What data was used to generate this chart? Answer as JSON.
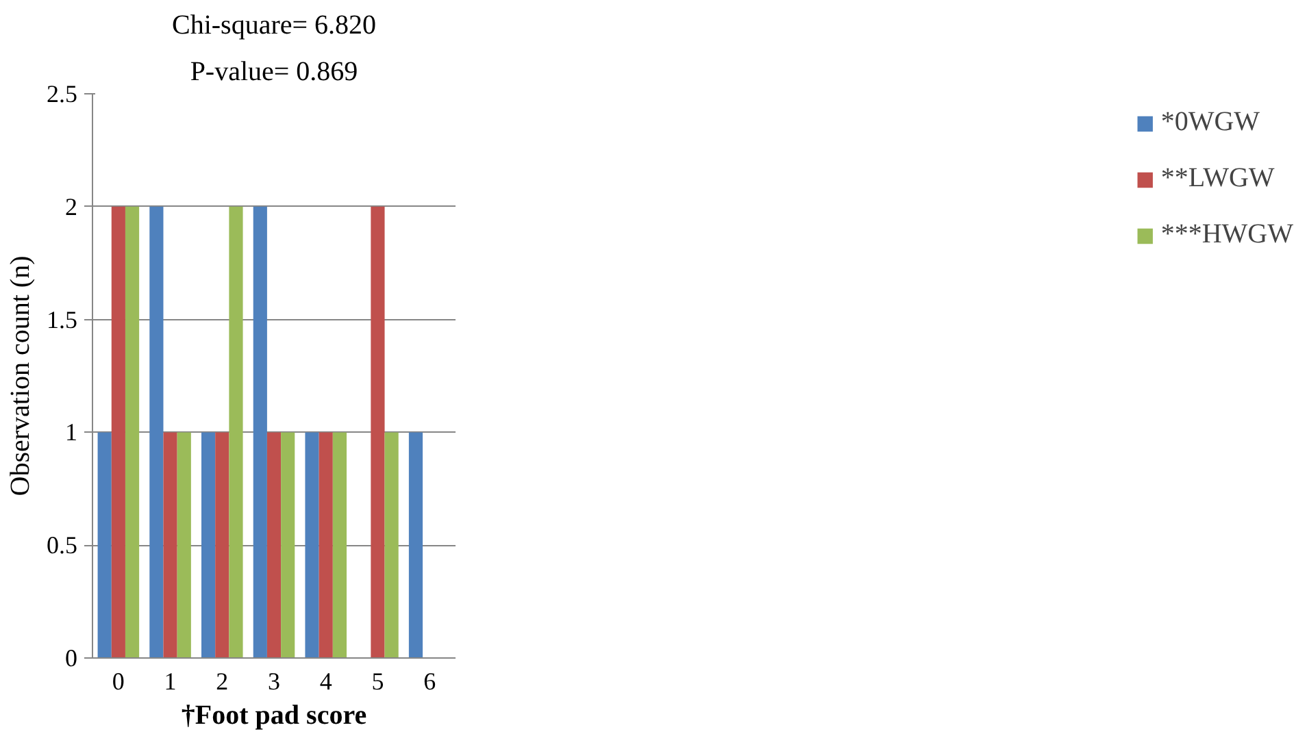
{
  "chart_data": {
    "type": "bar",
    "title": "Chi-square= 6.820",
    "subtitle": "P-value= 0.869",
    "xlabel": "†Foot pad score",
    "ylabel": "Observation count (n)",
    "categories": [
      "0",
      "1",
      "2",
      "3",
      "4",
      "5",
      "6"
    ],
    "series": [
      {
        "name": "*0WGW",
        "color": "#4f81bd",
        "values": [
          1,
          2,
          1,
          2,
          1,
          0,
          1
        ]
      },
      {
        "name": "**LWGW",
        "color": "#c0504d",
        "values": [
          2,
          1,
          1,
          1,
          1,
          2,
          0
        ]
      },
      {
        "name": "***HWGW",
        "color": "#9bbb59",
        "values": [
          2,
          1,
          2,
          1,
          1,
          1,
          0
        ]
      }
    ],
    "ylim": [
      0,
      2.5
    ],
    "yticks": [
      0,
      0.5,
      1,
      1.5,
      2,
      2.5
    ],
    "grid": "y",
    "legend": "right"
  }
}
